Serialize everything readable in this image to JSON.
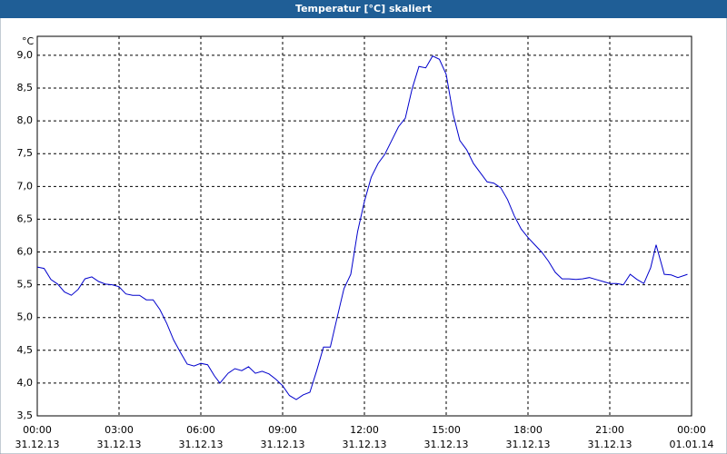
{
  "chart_data": {
    "type": "line",
    "title": "Temperatur [°C] skaliert",
    "y_unit": "°C",
    "x": [
      0,
      0.25,
      0.5,
      0.75,
      1,
      1.25,
      1.5,
      1.75,
      2,
      2.25,
      2.5,
      2.75,
      3,
      3.25,
      3.5,
      3.75,
      4,
      4.25,
      4.5,
      4.75,
      5,
      5.25,
      5.5,
      5.75,
      6,
      6.25,
      6.5,
      6.7,
      7,
      7.25,
      7.5,
      7.75,
      8,
      8.25,
      8.5,
      8.75,
      9,
      9.25,
      9.5,
      9.75,
      10,
      10.25,
      10.5,
      10.75,
      11,
      11.25,
      11.5,
      11.75,
      12,
      12.25,
      12.5,
      12.75,
      13,
      13.25,
      13.5,
      13.75,
      14,
      14.25,
      14.5,
      14.75,
      15,
      15.25,
      15.5,
      15.75,
      16,
      16.25,
      16.5,
      16.75,
      17,
      17.25,
      17.5,
      17.75,
      18,
      18.25,
      18.5,
      18.75,
      19,
      19.25,
      19.5,
      19.75,
      20,
      20.25,
      20.5,
      20.75,
      21,
      21.25,
      21.5,
      21.75,
      22,
      22.25,
      22.5,
      22.7,
      23,
      23.25,
      23.5,
      23.85
    ],
    "series": [
      {
        "name": "Temperatur",
        "color": "#0000cc",
        "values": [
          5.77,
          5.75,
          5.58,
          5.51,
          5.39,
          5.34,
          5.43,
          5.59,
          5.62,
          5.55,
          5.51,
          5.5,
          5.47,
          5.36,
          5.34,
          5.34,
          5.27,
          5.27,
          5.12,
          4.91,
          4.66,
          4.47,
          4.29,
          4.26,
          4.3,
          4.28,
          4.11,
          4.0,
          4.15,
          4.22,
          4.19,
          4.25,
          4.15,
          4.18,
          4.14,
          4.06,
          3.96,
          3.81,
          3.75,
          3.82,
          3.86,
          4.19,
          4.55,
          4.55,
          5.0,
          5.44,
          5.66,
          6.31,
          6.77,
          7.14,
          7.35,
          7.49,
          7.7,
          7.91,
          8.04,
          8.49,
          8.83,
          8.81,
          8.99,
          8.94,
          8.71,
          8.11,
          7.7,
          7.56,
          7.35,
          7.21,
          7.07,
          7.05,
          6.98,
          6.8,
          6.55,
          6.35,
          6.22,
          6.11,
          6.0,
          5.86,
          5.69,
          5.59,
          5.59,
          5.58,
          5.59,
          5.61,
          5.58,
          5.55,
          5.52,
          5.52,
          5.5,
          5.66,
          5.58,
          5.52,
          5.76,
          6.11,
          5.66,
          5.65,
          5.61,
          5.66
        ]
      }
    ],
    "xlim": [
      0,
      24
    ],
    "xticks": [
      {
        "value": 0,
        "label": "00:00"
      },
      {
        "value": 3,
        "label": "03:00"
      },
      {
        "value": 6,
        "label": "06:00"
      },
      {
        "value": 9,
        "label": "09:00"
      },
      {
        "value": 12,
        "label": "12:00"
      },
      {
        "value": 15,
        "label": "15:00"
      },
      {
        "value": 18,
        "label": "18:00"
      },
      {
        "value": 21,
        "label": "21:00"
      },
      {
        "value": 24,
        "label": "00:00"
      }
    ],
    "xtick_dates": [
      "31.12.13",
      "31.12.13",
      "31.12.13",
      "31.12.13",
      "31.12.13",
      "31.12.13",
      "31.12.13",
      "31.12.13",
      "01.01.14"
    ],
    "ylim": [
      3.5,
      9.29
    ],
    "yticks": [
      {
        "value": 3.5,
        "label": "3,5"
      },
      {
        "value": 4,
        "label": "4,0"
      },
      {
        "value": 4.5,
        "label": "4,5"
      },
      {
        "value": 5,
        "label": "5,0"
      },
      {
        "value": 5.5,
        "label": "5,5"
      },
      {
        "value": 6,
        "label": "6,0"
      },
      {
        "value": 6.5,
        "label": "6,5"
      },
      {
        "value": 7,
        "label": "7,0"
      },
      {
        "value": 7.5,
        "label": "7,5"
      },
      {
        "value": 8,
        "label": "8,0"
      },
      {
        "value": 8.5,
        "label": "8,5"
      },
      {
        "value": 9,
        "label": "9,0"
      }
    ],
    "grid": true
  }
}
